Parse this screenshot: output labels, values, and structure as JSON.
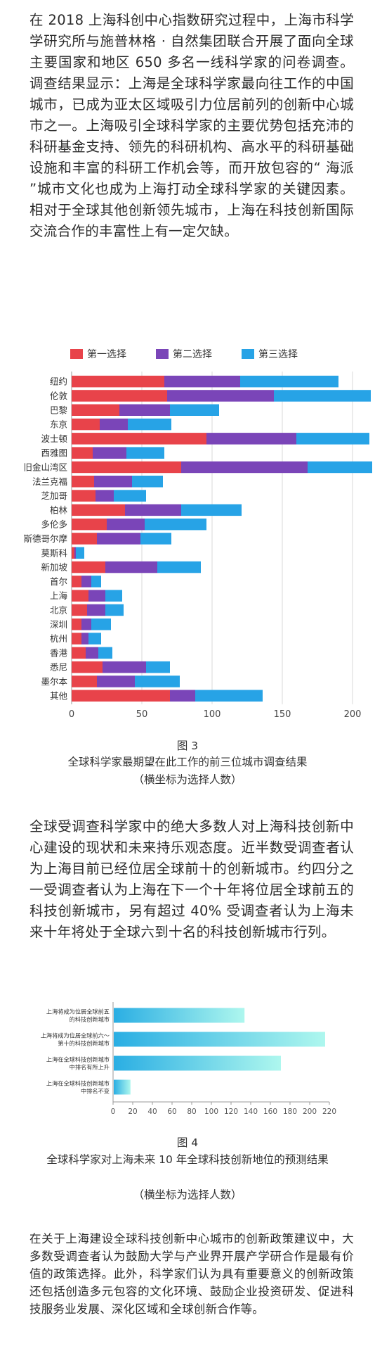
{
  "paragraphs": {
    "p1": "在 2018 上海科创中心指数研究过程中，上海市科学学研究所与施普林格 · 自然集团联合开展了面向全球主要国家和地区 650 多名一线科学家的问卷调查。调查结果显示：上海是全球科学家最向往工作的中国城市，已成为亚太区域吸引力位居前列的创新中心城市之一。上海吸引全球科学家的主要优势包括充沛的科研基金支持、领先的科研机构、高水平的科研基础设施和丰富的科研工作机会等，而开放包容的“ 海派 ”城市文化也成为上海打动全球科学家的关键因素。相对于全球其他创新领先城市，上海在科技创新国际交流合作的丰富性上有一定欠缺。",
    "p2": "全球受调查科学家中的绝大多数人对上海科技创新中心建设的现状和未来持乐观态度。近半数受调查者认为上海目前已经位居全球前十的创新城市。约四分之一受调查者认为上海在下一个十年将位居全球前五的科技创新城市，另有超过 40% 受调查者认为上海未来十年将处于全球六到十名的科技创新城市行列。",
    "p3": "在关于上海建设全球科技创新中心城市的创新政策建议中，大多数受调查者认为鼓励大学与产业界开展产学研合作是最有价值的政策选择。此外，科学家们认为具有重要意义的创新政策还包括创造多元包容的文化环境、鼓励企业投资研发、促进科技服务业发展、深化区域和全球创新合作等。"
  },
  "figure3": {
    "number": "图 3",
    "caption": "全球科学家最期望在此工作的前三位城市调查结果",
    "note": "（横坐标为选择人数）"
  },
  "figure4": {
    "number": "图 4",
    "caption": "全球科学家对上海未来 10 年全球科技创新地位的预测结果",
    "note": "（横坐标为选择人数）"
  },
  "chart_data": [
    {
      "type": "bar",
      "orientation": "horizontal",
      "stacked": true,
      "categories": [
        "纽约",
        "伦敦",
        "巴黎",
        "东京",
        "波士顿",
        "西雅图",
        "旧金山湾区",
        "法兰克福",
        "芝加哥",
        "柏林",
        "多伦多",
        "斯德哥尔摩",
        "莫斯科",
        "新加坡",
        "首尔",
        "上海",
        "北京",
        "深圳",
        "杭州",
        "香港",
        "悉尼",
        "墨尔本",
        "其他"
      ],
      "series": [
        {
          "name": "第一选择",
          "color": "#e8434a",
          "values": [
            66,
            68,
            34,
            20,
            96,
            15,
            78,
            16,
            17,
            38,
            25,
            18,
            2,
            24,
            7,
            12,
            11,
            7,
            7,
            10,
            22,
            18,
            70
          ]
        },
        {
          "name": "第二选择",
          "color": "#7a45b8",
          "values": [
            54,
            76,
            36,
            20,
            64,
            24,
            90,
            27,
            13,
            40,
            27,
            31,
            1,
            37,
            7,
            12,
            13,
            7,
            5,
            9,
            31,
            27,
            18
          ]
        },
        {
          "name": "第三选择",
          "color": "#27a3e6",
          "values": [
            70,
            69,
            35,
            31,
            52,
            27,
            46,
            22,
            23,
            43,
            44,
            22,
            6,
            31,
            7,
            12,
            13,
            14,
            9,
            10,
            17,
            32,
            48
          ]
        }
      ],
      "xlim": [
        0,
        215
      ],
      "xticks": [
        0,
        50,
        100,
        150,
        200
      ],
      "legend": "top"
    },
    {
      "type": "bar",
      "orientation": "horizontal",
      "categories": [
        "上海将成为位居全球前五的科技创新城市",
        "上海将成为位居全球前六～第十的科技创新城市",
        "上海在全球科技创新城市中排名有所上升",
        "上海在全球科技创新城市中排名不变"
      ],
      "values": [
        133,
        215,
        170,
        17
      ],
      "xlim": [
        0,
        220
      ],
      "xticks": [
        0,
        20,
        40,
        60,
        80,
        100,
        120,
        140,
        160,
        180,
        200,
        220
      ],
      "colors": {
        "start": "#2aaee3",
        "end": "#aef7ee"
      }
    }
  ]
}
